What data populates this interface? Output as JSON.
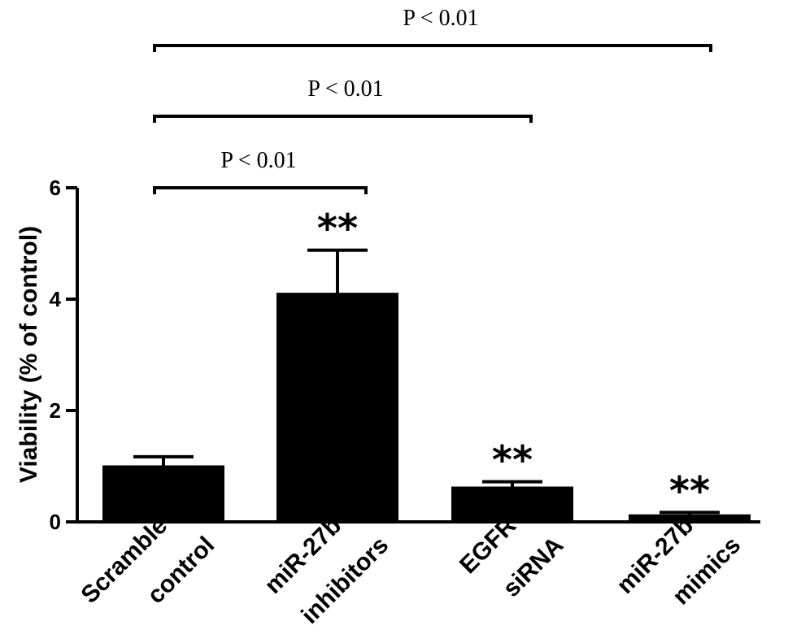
{
  "chart_data": {
    "type": "bar",
    "title": "",
    "xlabel": "",
    "ylabel": "Viability (% of control)",
    "ylim": [
      0,
      6
    ],
    "yticks": [
      "0",
      "2",
      "4",
      "6"
    ],
    "categories": [
      [
        "Scramble",
        "control"
      ],
      [
        "miR-27b",
        "inhibitors"
      ],
      [
        "EGFR",
        "siRNA"
      ],
      [
        "miR-27b",
        "mimics"
      ]
    ],
    "values": [
      1.0,
      4.1,
      0.62,
      0.12
    ],
    "errors": [
      0.17,
      0.78,
      0.1,
      0.05
    ],
    "significance": [
      "",
      "**",
      "**",
      "**"
    ],
    "comparisons": [
      {
        "from": 0,
        "to": 1,
        "label": "P < 0.01"
      },
      {
        "from": 0,
        "to": 2,
        "label": "P < 0.01"
      },
      {
        "from": 0,
        "to": 3,
        "label": "P < 0.01"
      }
    ],
    "grid": false,
    "colors": {
      "bar": "#000000",
      "background": "#ffffff"
    }
  }
}
